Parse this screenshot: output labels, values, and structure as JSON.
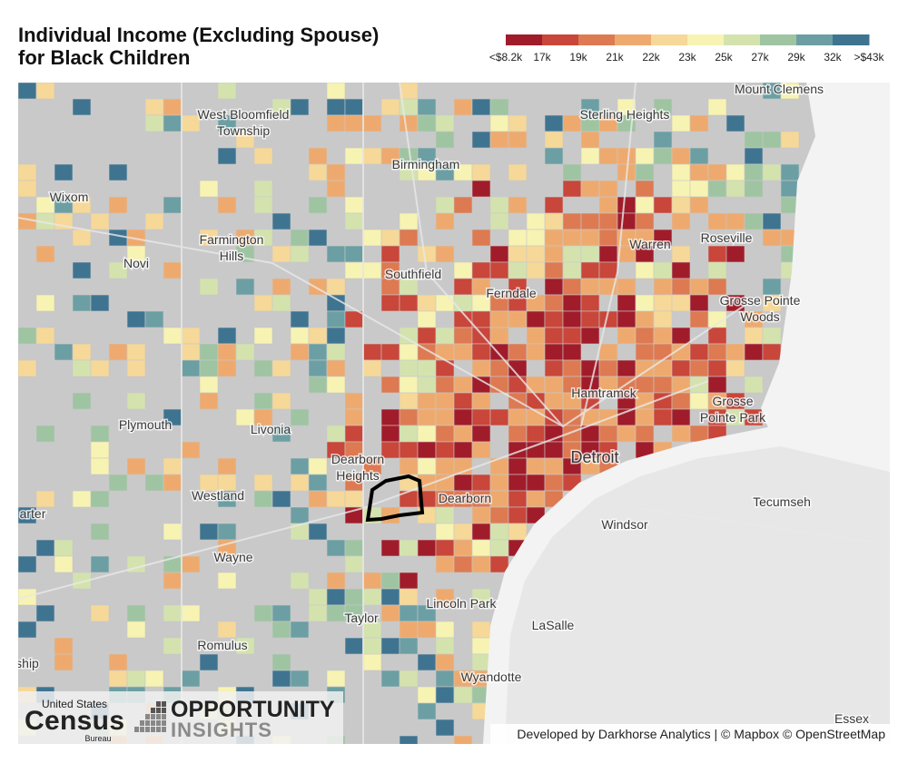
{
  "title": [
    "Individual Income (Excluding Spouse)",
    "for Black Children"
  ],
  "legend": {
    "colors": [
      "#a11c2a",
      "#c9463a",
      "#dd7a52",
      "#eeaa6e",
      "#f6d898",
      "#f7f3b2",
      "#d4e3ae",
      "#9fc4a2",
      "#6c9fa3",
      "#3f7491"
    ],
    "labels": [
      "<$8.2k",
      "17k",
      "19k",
      "21k",
      "22k",
      "23k",
      "25k",
      "27k",
      "29k",
      "32k",
      ">$43k"
    ]
  },
  "places": [
    [
      "West Bloomfield",
      "Township"
    ],
    [
      "Sterling Heights"
    ],
    [
      "Mount Clemens"
    ],
    [
      "Birmingham"
    ],
    [
      "Wixom"
    ],
    [
      "Warren"
    ],
    [
      "Roseville"
    ],
    [
      "Farmington",
      "Hills"
    ],
    [
      "Novi"
    ],
    [
      "Southfield"
    ],
    [
      "Ferndale"
    ],
    [
      "Grosse Pointe",
      "Woods"
    ],
    [
      "Hamtramck"
    ],
    [
      "Grosse",
      "Pointe Park"
    ],
    [
      "Plymouth"
    ],
    [
      "Livonia"
    ],
    [
      "Detroit"
    ],
    [
      "Dearborn",
      "Heights"
    ],
    [
      "Dearborn"
    ],
    [
      "Tecumseh"
    ],
    [
      "Westland"
    ],
    [
      "Windsor"
    ],
    [
      "arter"
    ],
    [
      "Wayne"
    ],
    [
      "Lincoln Park"
    ],
    [
      "Taylor"
    ],
    [
      "LaSalle"
    ],
    [
      "Romulus"
    ],
    [
      "ship"
    ],
    [
      "Wyandotte"
    ],
    [
      "Essex"
    ]
  ],
  "logos": {
    "census": [
      "United States",
      "Census",
      "Bureau"
    ],
    "oi": [
      "OPPORTUNITY",
      "INSIGHTS"
    ]
  },
  "attribution": "Developed by Darkhorse Analytics | © Mapbox © OpenStreetMap"
}
